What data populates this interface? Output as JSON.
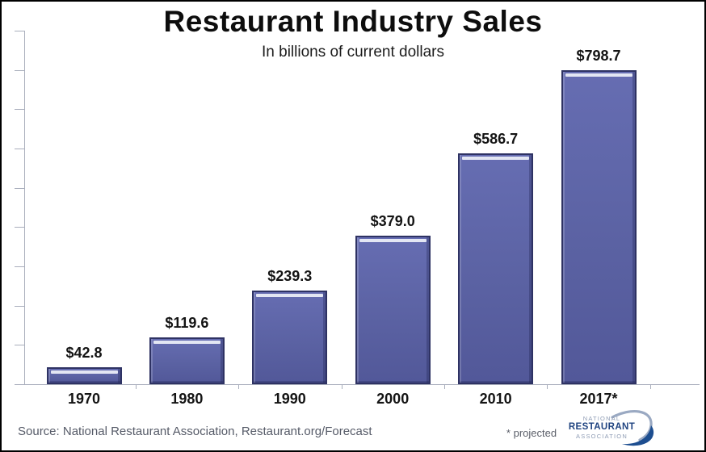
{
  "chart_data": {
    "type": "bar",
    "title": "Restaurant Industry Sales",
    "subtitle": "In billions of current dollars",
    "categories": [
      "1970",
      "1980",
      "1990",
      "2000",
      "2010",
      "2017*"
    ],
    "values": [
      42.8,
      119.6,
      239.3,
      379.0,
      586.7,
      798.7
    ],
    "value_labels": [
      "$42.8",
      "$119.6",
      "$239.3",
      "$379.0",
      "$586.7",
      "$798.7"
    ],
    "xlabel": "",
    "ylabel": "",
    "ylim": [
      0,
      900
    ],
    "y_tick_interval": 100,
    "y_tick_labels_visible": false,
    "grid": false,
    "legend_position": "none",
    "bar_color": "#5b62a3",
    "bar_border_color": "#2e3263",
    "bar_highlight_color": "#e3e6f3",
    "axis_color": "#a9aebc"
  },
  "footer": {
    "source": "Source: National Restaurant Association, Restaurant.org/Forecast",
    "projected_note": "* projected"
  },
  "logo": {
    "line1": "NATIONAL",
    "line2": "RESTAURANT",
    "line3": "ASSOCIATION"
  }
}
